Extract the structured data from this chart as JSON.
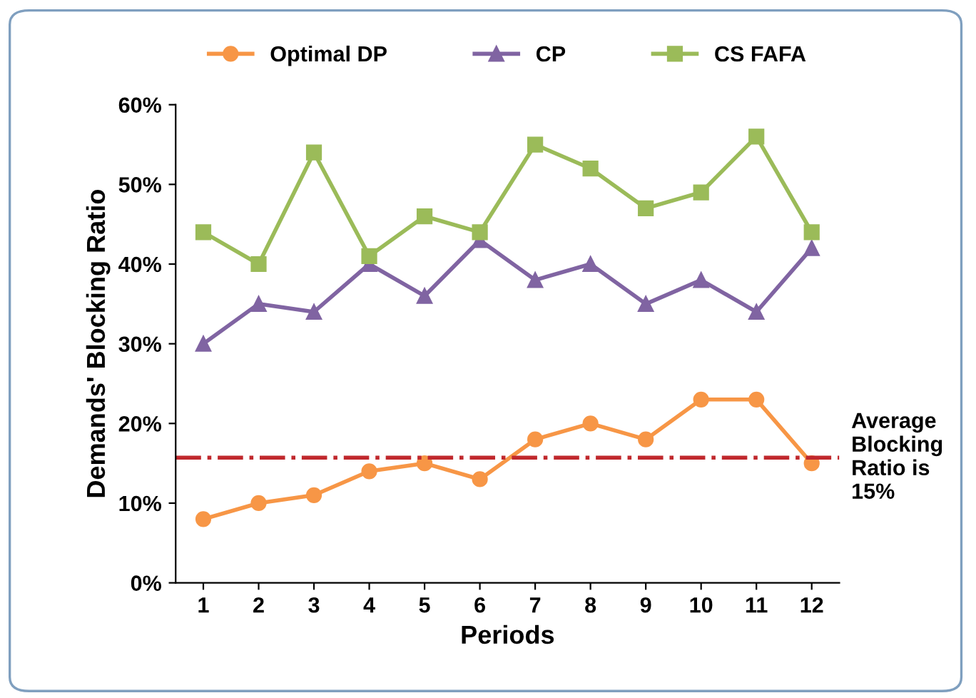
{
  "chart_data": {
    "type": "line",
    "xlabel": "Periods",
    "ylabel": "Demands' Blocking Ratio",
    "categories": [
      "1",
      "2",
      "3",
      "4",
      "5",
      "6",
      "7",
      "8",
      "9",
      "10",
      "11",
      "12"
    ],
    "series": [
      {
        "name": "Optimal DP",
        "color": "#f79646",
        "marker": "circle",
        "values": [
          8,
          10,
          11,
          14,
          15,
          13,
          18,
          20,
          18,
          23,
          23,
          15
        ]
      },
      {
        "name": "CP",
        "color": "#8064a2",
        "marker": "triangle",
        "values": [
          30,
          35,
          34,
          40,
          36,
          43,
          38,
          40,
          35,
          38,
          34,
          42
        ]
      },
      {
        "name": "CS FAFA",
        "color": "#9bbb59",
        "marker": "square",
        "values": [
          44,
          40,
          54,
          41,
          46,
          44,
          55,
          52,
          47,
          49,
          56,
          44
        ]
      }
    ],
    "ylim": [
      0,
      60
    ],
    "yticks": [
      {
        "value": 0,
        "label": "0%"
      },
      {
        "value": 10,
        "label": "10%"
      },
      {
        "value": 20,
        "label": "20%"
      },
      {
        "value": 30,
        "label": "30%"
      },
      {
        "value": 40,
        "label": "40%"
      },
      {
        "value": 50,
        "label": "50%"
      },
      {
        "value": 60,
        "label": "60%"
      }
    ],
    "ref_lines": [
      {
        "axis": "y",
        "value": 15.7,
        "label": "Average\nBlocking\nRatio is\n15%",
        "color": "#c0282d",
        "line_style": "dashdot"
      }
    ],
    "legend": "top",
    "grid": false,
    "line_style": "solid"
  }
}
